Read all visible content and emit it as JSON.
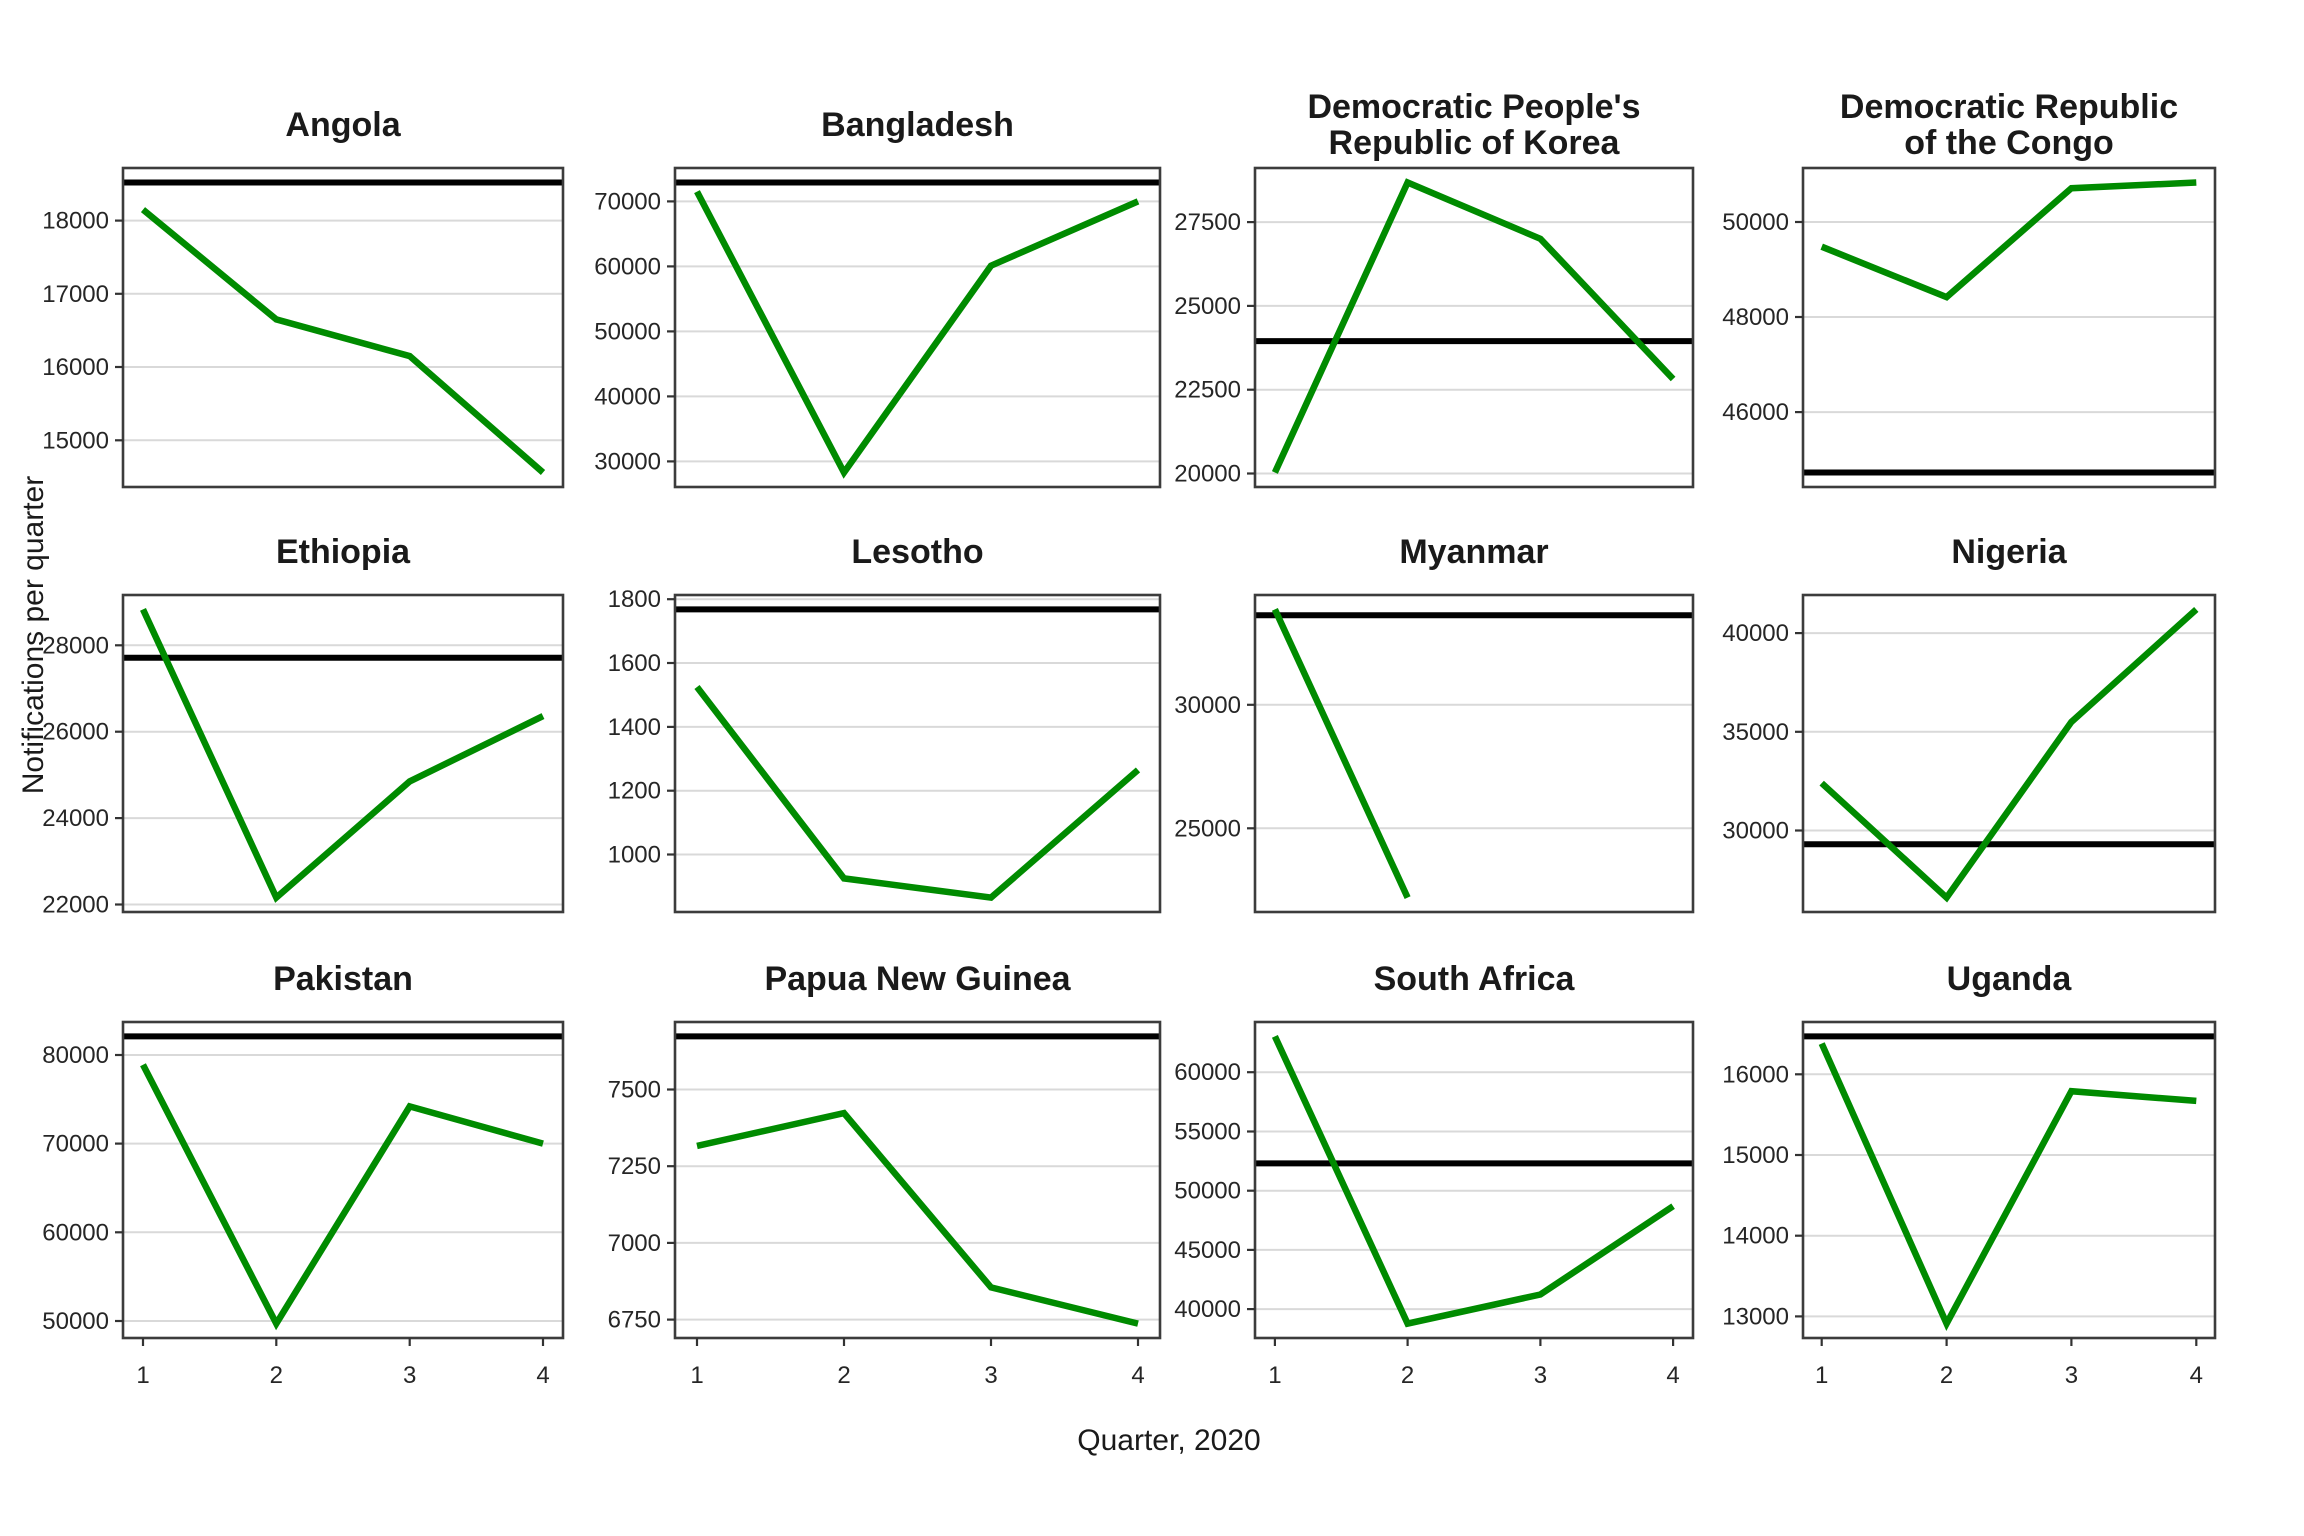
{
  "figure": {
    "xlabel": "Quarter, 2020",
    "ylabel": "Notifications per quarter",
    "xticks": [
      "1",
      "2",
      "3",
      "4"
    ],
    "colors": {
      "trend": "#008B00",
      "reference": "#000000",
      "grid": "#D9D9D9",
      "border": "#3C3C3C",
      "title": "#1A1A1A",
      "tick": "#262626",
      "tickmark": "#333333",
      "panel_bg": "#FFFFFF"
    }
  },
  "chart_data": [
    {
      "type": "line",
      "title": "Angola",
      "title_lines": [
        "Angola"
      ],
      "x": [
        1,
        2,
        3,
        4
      ],
      "values": [
        18150,
        16650,
        16150,
        14560
      ],
      "reference": 18520,
      "yticks": [
        15000,
        16000,
        17000,
        18000
      ]
    },
    {
      "type": "line",
      "title": "Bangladesh",
      "title_lines": [
        "Bangladesh"
      ],
      "x": [
        1,
        2,
        3,
        4
      ],
      "values": [
        71500,
        28300,
        60100,
        70000
      ],
      "reference": 72900,
      "yticks": [
        30000,
        40000,
        50000,
        60000,
        70000
      ]
    },
    {
      "type": "line",
      "title": "Democratic People's Republic of Korea",
      "title_lines": [
        "Democratic People's",
        "Republic of Korea"
      ],
      "x": [
        1,
        2,
        3,
        4
      ],
      "values": [
        20030,
        28680,
        27000,
        22820
      ],
      "reference": 23950,
      "yticks": [
        20000,
        22500,
        25000,
        27500
      ]
    },
    {
      "type": "line",
      "title": "Democratic Republic of the Congo",
      "title_lines": [
        "Democratic Republic",
        "of the Congo"
      ],
      "x": [
        1,
        2,
        3,
        4
      ],
      "values": [
        49480,
        48420,
        50710,
        50830
      ],
      "reference": 44730,
      "yticks": [
        46000,
        48000,
        50000
      ]
    },
    {
      "type": "line",
      "title": "Ethiopia",
      "title_lines": [
        "Ethiopia"
      ],
      "x": [
        1,
        2,
        3,
        4
      ],
      "values": [
        28830,
        22160,
        24850,
        26360
      ],
      "reference": 27710,
      "yticks": [
        22000,
        24000,
        26000,
        28000
      ]
    },
    {
      "type": "line",
      "title": "Lesotho",
      "title_lines": [
        "Lesotho"
      ],
      "x": [
        1,
        2,
        3,
        4
      ],
      "values": [
        1525,
        925,
        865,
        1265
      ],
      "reference": 1768,
      "yticks": [
        1000,
        1200,
        1400,
        1600,
        1800
      ]
    },
    {
      "type": "line",
      "title": "Myanmar",
      "title_lines": [
        "Myanmar"
      ],
      "x": [
        1,
        2,
        3,
        4
      ],
      "values": [
        33860,
        22195,
        null,
        null
      ],
      "reference": 33620,
      "yticks": [
        25000,
        30000
      ]
    },
    {
      "type": "line",
      "title": "Nigeria",
      "title_lines": [
        "Nigeria"
      ],
      "x": [
        1,
        2,
        3,
        4
      ],
      "values": [
        32400,
        26600,
        35500,
        41200
      ],
      "reference": 29300,
      "yticks": [
        30000,
        35000,
        40000
      ]
    },
    {
      "type": "line",
      "title": "Pakistan",
      "title_lines": [
        "Pakistan"
      ],
      "x": [
        1,
        2,
        3,
        4
      ],
      "values": [
        78900,
        49700,
        74200,
        70000
      ],
      "reference": 82100,
      "yticks": [
        50000,
        60000,
        70000,
        80000
      ]
    },
    {
      "type": "line",
      "title": "Papua New Guinea",
      "title_lines": [
        "Papua New Guinea"
      ],
      "x": [
        1,
        2,
        3,
        4
      ],
      "values": [
        7316,
        7423,
        6855,
        6737
      ],
      "reference": 7673,
      "yticks": [
        6750,
        7000,
        7250,
        7500
      ]
    },
    {
      "type": "line",
      "title": "South Africa",
      "title_lines": [
        "South Africa"
      ],
      "x": [
        1,
        2,
        3,
        4
      ],
      "values": [
        63030,
        38770,
        41230,
        48690
      ],
      "reference": 52300,
      "yticks": [
        40000,
        45000,
        50000,
        55000,
        60000
      ]
    },
    {
      "type": "line",
      "title": "Uganda",
      "title_lines": [
        "Uganda"
      ],
      "x": [
        1,
        2,
        3,
        4
      ],
      "values": [
        16380,
        12910,
        15790,
        15670
      ],
      "reference": 16470,
      "yticks": [
        13000,
        14000,
        15000,
        16000
      ]
    }
  ]
}
